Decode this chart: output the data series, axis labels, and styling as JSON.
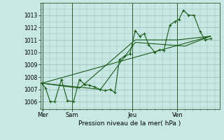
{
  "xlabel": "Pression niveau de la mer( hPa )",
  "bg_color": "#c8e8e4",
  "grid_color": "#99bbbb",
  "line_color": "#1a5c1a",
  "ylim": [
    1005.4,
    1014.0
  ],
  "xlim": [
    -0.1,
    11.8
  ],
  "yticks": [
    1006,
    1007,
    1008,
    1009,
    1010,
    1011,
    1012,
    1013
  ],
  "day_labels": [
    "Mer",
    "Sam",
    "Jeu",
    "Ven"
  ],
  "day_positions": [
    0.05,
    2.0,
    6.0,
    9.0
  ],
  "vline_positions": [
    0.05,
    2.0,
    6.0,
    9.0
  ],
  "series": [
    {
      "x": [
        0.0,
        0.25,
        0.55,
        0.85,
        1.3,
        1.7,
        2.1,
        2.5,
        2.85,
        3.15,
        3.5,
        3.85,
        4.2,
        4.55,
        4.85,
        5.15,
        5.5,
        5.85,
        6.2,
        6.5,
        6.8,
        7.1,
        7.5,
        7.8,
        8.1,
        8.5,
        8.85,
        9.1,
        9.4,
        9.75,
        10.1,
        10.5,
        10.85,
        11.2
      ],
      "y": [
        1007.5,
        1007.1,
        1006.0,
        1006.0,
        1007.8,
        1006.1,
        1006.0,
        1007.8,
        1007.4,
        1007.35,
        1007.2,
        1007.0,
        1006.9,
        1007.0,
        1006.75,
        1009.4,
        1009.7,
        1009.85,
        1011.75,
        1011.3,
        1011.5,
        1010.6,
        1010.0,
        1010.2,
        1010.15,
        1012.2,
        1012.5,
        1012.65,
        1013.4,
        1013.0,
        1013.0,
        1011.7,
        1011.0,
        1011.1
      ],
      "marker": true
    },
    {
      "x": [
        0.0,
        2.5,
        6.2,
        9.0,
        11.2
      ],
      "y": [
        1007.5,
        1007.1,
        1011.0,
        1011.0,
        1011.3
      ],
      "marker": false
    },
    {
      "x": [
        0.0,
        11.2
      ],
      "y": [
        1007.5,
        1011.3
      ],
      "marker": false
    },
    {
      "x": [
        0.0,
        3.9,
        6.2,
        9.5,
        11.2
      ],
      "y": [
        1007.5,
        1007.0,
        1010.8,
        1010.5,
        1011.3
      ],
      "marker": false
    }
  ]
}
